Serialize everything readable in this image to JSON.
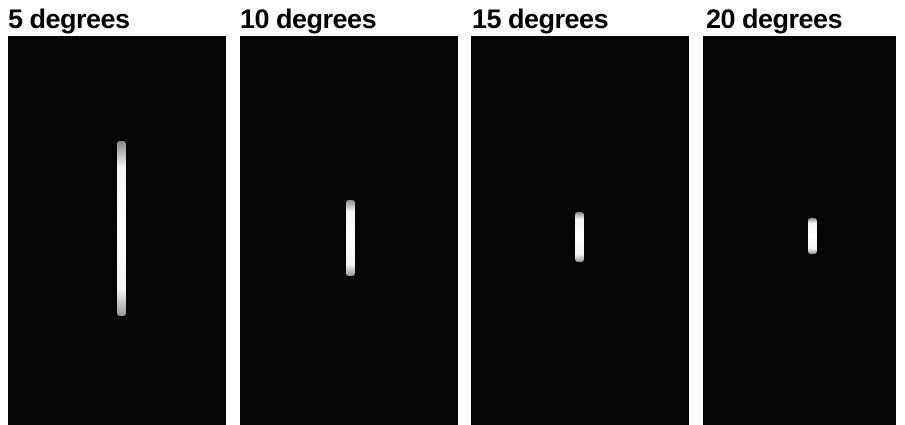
{
  "panels": [
    {
      "label": "5 degrees"
    },
    {
      "label": "10 degrees"
    },
    {
      "label": "15 degrees"
    },
    {
      "label": "20 degrees"
    }
  ]
}
